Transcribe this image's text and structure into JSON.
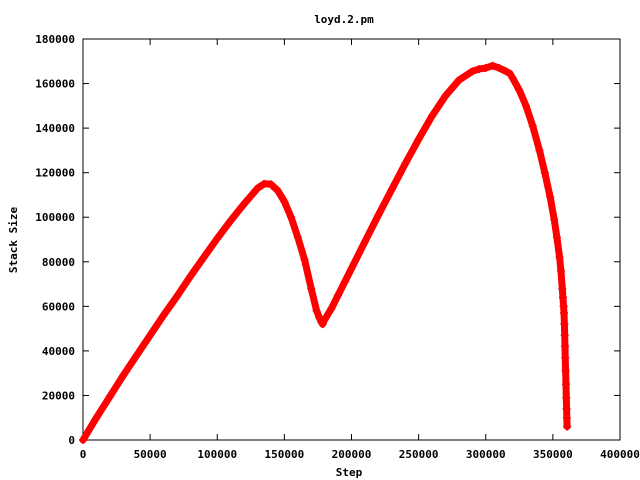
{
  "chart_data": {
    "type": "scatter",
    "title": "loyd.2.pm",
    "xlabel": "Step",
    "ylabel": "Stack Size",
    "xlim": [
      0,
      400000
    ],
    "ylim": [
      0,
      180000
    ],
    "xticks": [
      "0",
      "50000",
      "100000",
      "150000",
      "200000",
      "250000",
      "300000",
      "350000",
      "400000"
    ],
    "yticks": [
      "0",
      "20000",
      "40000",
      "60000",
      "80000",
      "100000",
      "120000",
      "140000",
      "160000",
      "180000"
    ],
    "grid": false,
    "legend": "none",
    "marker": "+",
    "series": [
      {
        "color": "#ff0000",
        "x": [
          0,
          10000,
          20000,
          30000,
          40000,
          50000,
          60000,
          70000,
          80000,
          90000,
          100000,
          110000,
          120000,
          125000,
          130000,
          135000,
          140000,
          145000,
          150000,
          155000,
          160000,
          165000,
          170000,
          174000,
          176000,
          177500,
          178500,
          180000,
          185000,
          190000,
          195000,
          200000,
          210000,
          220000,
          230000,
          240000,
          250000,
          260000,
          270000,
          280000,
          290000,
          295000,
          300000,
          305000,
          310000,
          315000,
          318000,
          320000,
          325000,
          330000,
          335000,
          340000,
          344000,
          348000,
          351000,
          353000,
          355000,
          356000,
          357000,
          357500,
          358000,
          358300,
          358600,
          358800,
          359000,
          359200,
          359500,
          359800,
          360000,
          360200,
          360400,
          360600
        ],
        "y": [
          0,
          10000,
          19500,
          29000,
          38000,
          47000,
          56000,
          64500,
          73500,
          82000,
          90500,
          98500,
          106000,
          109500,
          113000,
          115000,
          114800,
          112000,
          107000,
          100000,
          91000,
          81000,
          68000,
          58000,
          55000,
          53000,
          52000,
          54000,
          59000,
          65000,
          71000,
          77000,
          89000,
          101000,
          112500,
          124000,
          135000,
          145500,
          154500,
          161500,
          165500,
          166500,
          167000,
          168000,
          167000,
          165500,
          164500,
          162500,
          157000,
          150000,
          141000,
          130000,
          120000,
          109000,
          99000,
          91000,
          82000,
          76000,
          68000,
          64000,
          60000,
          57000,
          52000,
          47000,
          42000,
          37000,
          31000,
          25000,
          19000,
          14000,
          10000,
          6000
        ]
      }
    ]
  }
}
